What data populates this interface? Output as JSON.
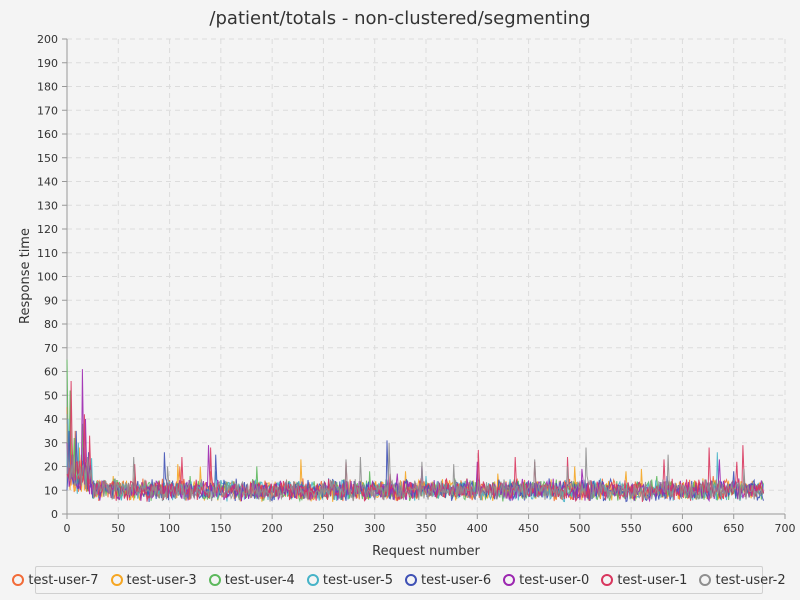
{
  "chart_data": {
    "type": "line",
    "title": "/patient/totals - non-clustered/segmenting",
    "xlabel": "Request number",
    "ylabel": "Response time",
    "xlim": [
      0,
      700
    ],
    "ylim": [
      0,
      200
    ],
    "x_ticks": [
      "0",
      "50",
      "100",
      "150",
      "200",
      "250",
      "300",
      "350",
      "400",
      "450",
      "500",
      "550",
      "600",
      "650",
      "700"
    ],
    "y_ticks": [
      "0",
      "10",
      "20",
      "30",
      "40",
      "50",
      "60",
      "70",
      "80",
      "90",
      "100",
      "110",
      "120",
      "130",
      "140",
      "150",
      "160",
      "170",
      "180",
      "190",
      "200"
    ],
    "grid": true,
    "legend_position": "bottom",
    "points_per_series": 680,
    "baseline": 10,
    "series": [
      {
        "name": "test-user-7",
        "color": "#f26b38",
        "spikes": [
          [
            0,
            45
          ],
          [
            3,
            20
          ],
          [
            8,
            35
          ],
          [
            14,
            25
          ],
          [
            20,
            18
          ],
          [
            66,
            17
          ],
          [
            110,
            20
          ],
          [
            140,
            18
          ],
          [
            230,
            15
          ],
          [
            345,
            15
          ],
          [
            480,
            14
          ],
          [
            560,
            13
          ],
          [
            630,
            16
          ],
          [
            660,
            13
          ]
        ]
      },
      {
        "name": "test-user-3",
        "color": "#f5a623",
        "spikes": [
          [
            0,
            38
          ],
          [
            4,
            30
          ],
          [
            12,
            28
          ],
          [
            18,
            22
          ],
          [
            45,
            16
          ],
          [
            108,
            21
          ],
          [
            130,
            20
          ],
          [
            228,
            23
          ],
          [
            330,
            18
          ],
          [
            390,
            15
          ],
          [
            420,
            17
          ],
          [
            495,
            20
          ],
          [
            545,
            18
          ],
          [
            560,
            19
          ],
          [
            620,
            15
          ],
          [
            668,
            14
          ]
        ]
      },
      {
        "name": "test-user-4",
        "color": "#5cb85c",
        "spikes": [
          [
            0,
            65
          ],
          [
            3,
            52
          ],
          [
            7,
            32
          ],
          [
            15,
            38
          ],
          [
            22,
            18
          ],
          [
            120,
            16
          ],
          [
            185,
            20
          ],
          [
            295,
            18
          ],
          [
            378,
            15
          ],
          [
            440,
            14
          ],
          [
            575,
            16
          ]
        ]
      },
      {
        "name": "test-user-5",
        "color": "#46b3c8",
        "spikes": [
          [
            1,
            40
          ],
          [
            6,
            22
          ],
          [
            11,
            30
          ],
          [
            19,
            20
          ],
          [
            145,
            18
          ],
          [
            205,
            13
          ],
          [
            350,
            16
          ],
          [
            520,
            15
          ],
          [
            634,
            26
          ],
          [
            650,
            14
          ]
        ]
      },
      {
        "name": "test-user-6",
        "color": "#3f51b5",
        "spikes": [
          [
            2,
            35
          ],
          [
            9,
            35
          ],
          [
            16,
            28
          ],
          [
            21,
            26
          ],
          [
            95,
            26
          ],
          [
            145,
            25
          ],
          [
            255,
            15
          ],
          [
            312,
            31
          ],
          [
            400,
            17
          ],
          [
            470,
            15
          ],
          [
            585,
            16
          ],
          [
            650,
            18
          ]
        ]
      },
      {
        "name": "test-user-0",
        "color": "#9c27b0",
        "spikes": [
          [
            0,
            30
          ],
          [
            5,
            25
          ],
          [
            15,
            61
          ],
          [
            18,
            40
          ],
          [
            138,
            29
          ],
          [
            208,
            14
          ],
          [
            322,
            17
          ],
          [
            346,
            20
          ],
          [
            400,
            22
          ],
          [
            502,
            19
          ],
          [
            598,
            14
          ],
          [
            636,
            23
          ],
          [
            655,
            15
          ]
        ]
      },
      {
        "name": "test-user-1",
        "color": "#d9365e",
        "spikes": [
          [
            4,
            56
          ],
          [
            10,
            22
          ],
          [
            17,
            42
          ],
          [
            22,
            33
          ],
          [
            66,
            21
          ],
          [
            112,
            24
          ],
          [
            140,
            28
          ],
          [
            272,
            22
          ],
          [
            315,
            17
          ],
          [
            401,
            27
          ],
          [
            437,
            24
          ],
          [
            456,
            22
          ],
          [
            488,
            24
          ],
          [
            582,
            23
          ],
          [
            626,
            28
          ],
          [
            653,
            22
          ],
          [
            659,
            29
          ]
        ]
      },
      {
        "name": "test-user-2",
        "color": "#8f8f8f",
        "spikes": [
          [
            0,
            42
          ],
          [
            6,
            25
          ],
          [
            13,
            20
          ],
          [
            20,
            24
          ],
          [
            65,
            24
          ],
          [
            98,
            20
          ],
          [
            272,
            23
          ],
          [
            286,
            24
          ],
          [
            314,
            30
          ],
          [
            346,
            22
          ],
          [
            377,
            21
          ],
          [
            456,
            23
          ],
          [
            488,
            20
          ],
          [
            506,
            28
          ],
          [
            586,
            25
          ],
          [
            660,
            19
          ]
        ]
      }
    ]
  }
}
